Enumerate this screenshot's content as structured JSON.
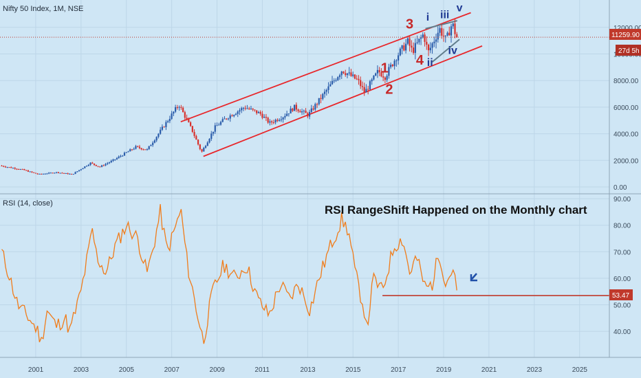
{
  "chart_data": [
    {
      "type": "candlestick",
      "title": "Nifty 50 Index, 1M, NSE",
      "y_ticks": [
        "0.00",
        "2000.00",
        "4000.00",
        "6000.00",
        "8000.00",
        "10000.00",
        "12000.00"
      ],
      "ylim": [
        0,
        13700
      ],
      "current_price_label": "11259.90",
      "countdown_label": "27d 5h",
      "current_price": 11259.9,
      "anchors": [
        [
          2000.0,
          1600
        ],
        [
          2001.0,
          1300
        ],
        [
          2001.7,
          950
        ],
        [
          2002.5,
          1100
        ],
        [
          2003.2,
          950
        ],
        [
          2004.0,
          1800
        ],
        [
          2004.4,
          1500
        ],
        [
          2005.0,
          2000
        ],
        [
          2006.0,
          3000
        ],
        [
          2006.5,
          2800
        ],
        [
          2007.0,
          4000
        ],
        [
          2007.9,
          6200
        ],
        [
          2008.5,
          4200
        ],
        [
          2008.9,
          2600
        ],
        [
          2009.5,
          4500
        ],
        [
          2010.0,
          5200
        ],
        [
          2010.8,
          6000
        ],
        [
          2011.5,
          5500
        ],
        [
          2011.9,
          4800
        ],
        [
          2012.5,
          5300
        ],
        [
          2013.0,
          6000
        ],
        [
          2013.6,
          5400
        ],
        [
          2014.3,
          7000
        ],
        [
          2015.1,
          8800
        ],
        [
          2015.8,
          8000
        ],
        [
          2016.1,
          7100
        ],
        [
          2016.7,
          8700
        ],
        [
          2017.0,
          8300
        ],
        [
          2017.5,
          9800
        ],
        [
          2018.0,
          10900
        ],
        [
          2018.2,
          10200
        ],
        [
          2018.7,
          11500
        ],
        [
          2018.9,
          10100
        ],
        [
          2019.4,
          11900
        ],
        [
          2019.7,
          11000
        ],
        [
          2019.9,
          12100
        ],
        [
          2020.0,
          12100
        ],
        [
          2020.15,
          11259.9
        ]
      ],
      "channel_upper": [
        [
          2007.9,
          4900
        ],
        [
          2020.7,
          13100
        ]
      ],
      "channel_lower": [
        [
          2008.9,
          2300
        ],
        [
          2021.2,
          10600
        ]
      ],
      "wedge_lines": [
        [
          [
            2018.7,
            11900
          ],
          [
            2020.1,
            12500
          ]
        ],
        [
          [
            2019.0,
            9400
          ],
          [
            2020.2,
            11100
          ]
        ]
      ],
      "wave_labels": {
        "main": [
          {
            "text": "1",
            "x": 2016.9,
            "y": 8600
          },
          {
            "text": "2",
            "x": 2017.1,
            "y": 7000
          },
          {
            "text": "3",
            "x": 2018.0,
            "y": 11900
          },
          {
            "text": "4",
            "x": 2018.45,
            "y": 9200
          }
        ],
        "sub": [
          {
            "text": "i",
            "x": 2018.8,
            "y": 12500
          },
          {
            "text": "ii",
            "x": 2018.9,
            "y": 9100
          },
          {
            "text": "iii",
            "x": 2019.55,
            "y": 12700
          },
          {
            "text": "iv",
            "x": 2019.9,
            "y": 10000
          },
          {
            "text": "v",
            "x": 2020.2,
            "y": 13200
          }
        ]
      },
      "colors": {
        "up": "#2a5caa",
        "down": "#d8302b",
        "channel": "#e8262a",
        "wedge": "#607d8b",
        "main_wave": "#c62828",
        "sub_wave": "#1f3a93",
        "price_line": "#c0392b"
      }
    },
    {
      "type": "line",
      "title": "RSI (14, close)",
      "annotation": "RSI RangeShift Happened on the Monthly chart",
      "y_ticks": [
        "40.00",
        "50.00",
        "60.00",
        "70.00",
        "80.00",
        "90.00"
      ],
      "ylim": [
        32,
        91
      ],
      "value_label": "53.47",
      "support_level": 53.47,
      "support_x": [
        2016.8,
        2027.0
      ],
      "color": "#f07c1a",
      "anchors": [
        [
          2000.0,
          70
        ],
        [
          2000.3,
          62
        ],
        [
          2000.7,
          50
        ],
        [
          2001.2,
          45
        ],
        [
          2001.6,
          40
        ],
        [
          2001.75,
          36
        ],
        [
          2002.0,
          48
        ],
        [
          2002.4,
          42
        ],
        [
          2002.8,
          45
        ],
        [
          2003.0,
          40
        ],
        [
          2003.5,
          55
        ],
        [
          2004.0,
          78
        ],
        [
          2004.2,
          68
        ],
        [
          2004.6,
          62
        ],
        [
          2005.0,
          72
        ],
        [
          2005.5,
          80
        ],
        [
          2006.0,
          75
        ],
        [
          2006.4,
          62
        ],
        [
          2006.6,
          68
        ],
        [
          2007.0,
          85
        ],
        [
          2007.3,
          70
        ],
        [
          2007.7,
          80
        ],
        [
          2007.9,
          86
        ],
        [
          2008.2,
          65
        ],
        [
          2008.6,
          48
        ],
        [
          2008.9,
          36
        ],
        [
          2009.3,
          55
        ],
        [
          2009.8,
          65
        ],
        [
          2010.3,
          60
        ],
        [
          2010.8,
          65
        ],
        [
          2011.3,
          52
        ],
        [
          2011.8,
          46
        ],
        [
          2012.3,
          58
        ],
        [
          2012.7,
          52
        ],
        [
          2013.1,
          58
        ],
        [
          2013.6,
          48
        ],
        [
          2014.0,
          60
        ],
        [
          2014.5,
          72
        ],
        [
          2015.0,
          82
        ],
        [
          2015.3,
          78
        ],
        [
          2015.6,
          62
        ],
        [
          2016.0,
          48
        ],
        [
          2016.1,
          40
        ],
        [
          2016.4,
          60
        ],
        [
          2016.8,
          55
        ],
        [
          2017.3,
          72
        ],
        [
          2017.7,
          75
        ],
        [
          2018.0,
          62
        ],
        [
          2018.3,
          68
        ],
        [
          2018.7,
          56
        ],
        [
          2019.0,
          58
        ],
        [
          2019.3,
          70
        ],
        [
          2019.6,
          58
        ],
        [
          2019.9,
          64
        ],
        [
          2020.1,
          54
        ],
        [
          2020.15,
          53.47
        ]
      ]
    }
  ],
  "x_ticks": [
    "2001",
    "2003",
    "2005",
    "2007",
    "2009",
    "2011",
    "2013",
    "2015",
    "2017",
    "2019",
    "2021",
    "2023",
    "2025"
  ],
  "background": "#cfe6f5",
  "arrow_color": "#1f4fa8"
}
